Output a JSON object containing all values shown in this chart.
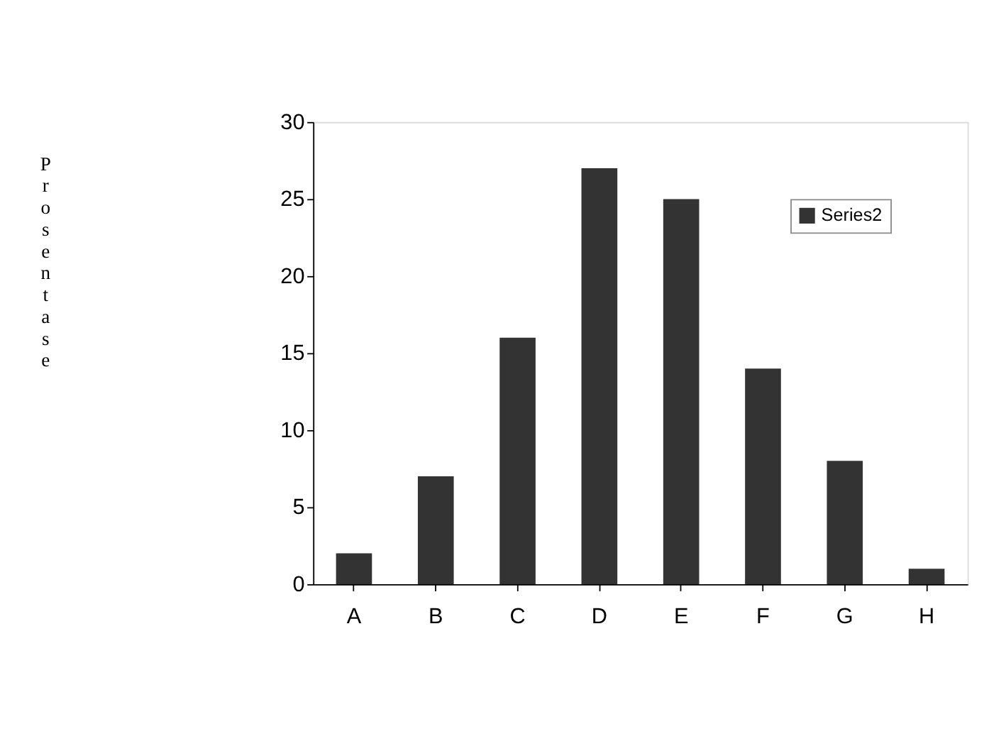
{
  "chart_data": {
    "type": "bar",
    "ylabel": "Prosentase",
    "categories": [
      "A",
      "B",
      "C",
      "D",
      "E",
      "F",
      "G",
      "H"
    ],
    "series": [
      {
        "name": "Series2",
        "color": "#333333",
        "values": [
          2,
          7,
          16,
          27,
          25,
          14,
          8,
          1
        ]
      }
    ],
    "ylim": [
      0,
      30
    ],
    "yticks": [
      0,
      5,
      10,
      15,
      20,
      25,
      30
    ],
    "grid": false,
    "legend": "top right"
  }
}
